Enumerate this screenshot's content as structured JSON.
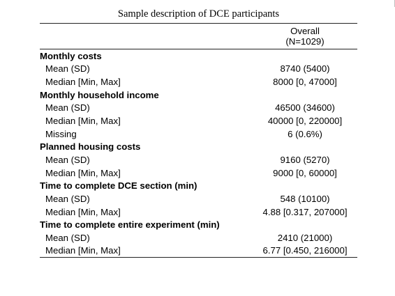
{
  "caption": "Sample description of DCE participants",
  "header": {
    "column_label": "Overall",
    "column_n": "(N=1029)"
  },
  "sections": [
    {
      "title": "Monthly costs",
      "rows": [
        {
          "label": "Mean (SD)",
          "value": "8740 (5400)"
        },
        {
          "label": "Median [Min, Max]",
          "value": "8000 [0, 47000]"
        }
      ]
    },
    {
      "title": "Monthly household income",
      "rows": [
        {
          "label": "Mean (SD)",
          "value": "46500 (34600)"
        },
        {
          "label": "Median [Min, Max]",
          "value": "40000 [0, 220000]"
        },
        {
          "label": "Missing",
          "value": "6 (0.6%)"
        }
      ]
    },
    {
      "title": "Planned housing costs",
      "rows": [
        {
          "label": "Mean (SD)",
          "value": "9160 (5270)"
        },
        {
          "label": "Median [Min, Max]",
          "value": "9000 [0, 60000]"
        }
      ]
    },
    {
      "title": "Time to complete DCE section (min)",
      "rows": [
        {
          "label": "Mean (SD)",
          "value": "548 (10100)"
        },
        {
          "label": "Median [Min, Max]",
          "value": "4.88 [0.317, 207000]"
        }
      ]
    },
    {
      "title": "Time to complete entire experiment (min)",
      "rows": [
        {
          "label": "Mean (SD)",
          "value": "2410 (21000)"
        },
        {
          "label": "Median [Min, Max]",
          "value": "6.77 [0.450, 216000]"
        }
      ]
    }
  ]
}
